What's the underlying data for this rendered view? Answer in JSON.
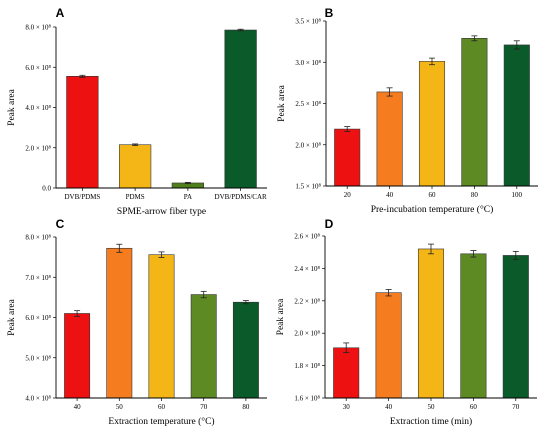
{
  "chart_data": [
    {
      "type": "bar",
      "panel": "A",
      "categories": [
        "DVB/PDMS",
        "PDMS",
        "PA",
        "DVB/PDMS/CAR"
      ],
      "values": [
        5.55,
        2.15,
        0.25,
        7.85
      ],
      "errors": [
        0.05,
        0.04,
        0.03,
        0.04
      ],
      "colors": [
        "#ee1111",
        "#f4b616",
        "#4f7f1c",
        "#0b5a2a"
      ],
      "xlabel": "SPME-arrow fiber type",
      "ylabel": "Peak area",
      "ylim": [
        0.0,
        8.0
      ],
      "yticks": [
        0.0,
        2.0,
        4.0,
        6.0,
        8.0
      ],
      "ytick_labels": [
        "0.0",
        "2.0 × 10⁸",
        "4.0 × 10⁸",
        "6.0 × 10⁸",
        "8.0 × 10⁸"
      ]
    },
    {
      "type": "bar",
      "panel": "B",
      "categories": [
        "20",
        "40",
        "60",
        "80",
        "100"
      ],
      "values": [
        2.19,
        2.64,
        3.01,
        3.29,
        3.21
      ],
      "errors": [
        0.03,
        0.05,
        0.04,
        0.03,
        0.05
      ],
      "colors": [
        "#ee1111",
        "#f57d1f",
        "#f4b616",
        "#5e8a24",
        "#0b5a2a"
      ],
      "xlabel": "Pre-incubation temperature (°C)",
      "ylabel": "Peak area",
      "ylim": [
        1.5,
        3.5
      ],
      "yticks": [
        1.5,
        2.0,
        2.5,
        3.0,
        3.5
      ],
      "ytick_labels": [
        "1.5 × 10⁸",
        "2.0 × 10⁸",
        "2.5 × 10⁸",
        "3.0 × 10⁸",
        "3.5 × 10⁸"
      ]
    },
    {
      "type": "bar",
      "panel": "C",
      "categories": [
        "40",
        "50",
        "60",
        "70",
        "80"
      ],
      "values": [
        6.1,
        7.72,
        7.56,
        6.57,
        6.38
      ],
      "errors": [
        0.07,
        0.1,
        0.07,
        0.08,
        0.04
      ],
      "colors": [
        "#ee1111",
        "#f57d1f",
        "#f4b616",
        "#5e8a24",
        "#0b5a2a"
      ],
      "xlabel": "Extraction temperature (°C)",
      "ylabel": "Peak area",
      "ylim": [
        4.0,
        8.0
      ],
      "yticks": [
        4.0,
        5.0,
        6.0,
        7.0,
        8.0
      ],
      "ytick_labels": [
        "4.0 × 10⁸",
        "5.0 × 10⁸",
        "6.0 × 10⁸",
        "7.0 × 10⁸",
        "8.0 × 10⁸"
      ]
    },
    {
      "type": "bar",
      "panel": "D",
      "categories": [
        "30",
        "40",
        "50",
        "60",
        "70"
      ],
      "values": [
        1.91,
        2.25,
        2.52,
        2.49,
        2.48
      ],
      "errors": [
        0.03,
        0.02,
        0.03,
        0.02,
        0.025
      ],
      "colors": [
        "#ee1111",
        "#f57d1f",
        "#f4b616",
        "#5e8a24",
        "#0b5a2a"
      ],
      "xlabel": "Extraction time (min)",
      "ylabel": "Peak area",
      "ylim": [
        1.6,
        2.6
      ],
      "yticks": [
        1.6,
        1.8,
        2.0,
        2.2,
        2.4,
        2.6
      ],
      "ytick_labels": [
        "1.6 × 10⁸",
        "1.8 × 10⁸",
        "2.0 × 10⁸",
        "2.2 × 10⁸",
        "2.4 × 10⁸",
        "2.6 × 10⁸"
      ]
    }
  ]
}
